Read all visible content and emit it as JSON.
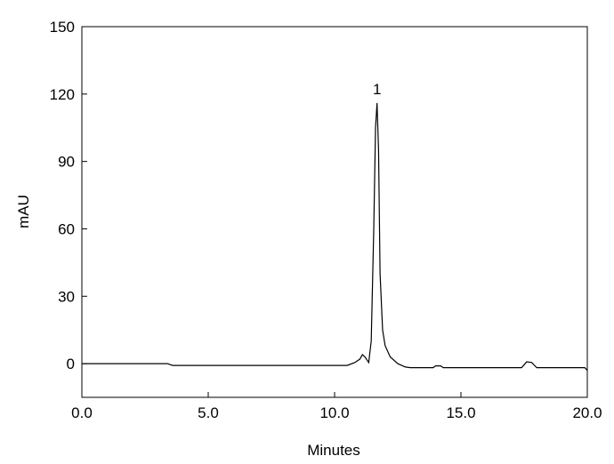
{
  "chart_data": {
    "type": "line",
    "x_label": "Minutes",
    "y_label": "mAU",
    "annotation": {
      "text": "1",
      "x": 11.68,
      "y": 116
    },
    "x": [
      0,
      3.4,
      3.5,
      3.6,
      10.5,
      10.8,
      11.0,
      11.1,
      11.2,
      11.35,
      11.45,
      11.55,
      11.62,
      11.68,
      11.74,
      11.8,
      11.9,
      12.0,
      12.2,
      12.5,
      12.8,
      13.0,
      13.9,
      14.0,
      14.2,
      14.3,
      17.4,
      17.6,
      17.8,
      18.0,
      19.9,
      20.0
    ],
    "series": [
      {
        "color": "#000000",
        "values": [
          0,
          0,
          -0.5,
          -0.8,
          -0.8,
          0.5,
          2,
          4,
          3,
          0.5,
          10,
          60,
          105,
          116,
          95,
          40,
          15,
          8,
          3,
          0,
          -1.5,
          -1.8,
          -1.8,
          -1,
          -1,
          -1.8,
          -1.8,
          0.8,
          0.5,
          -1.8,
          -1.8,
          -3
        ]
      }
    ],
    "xlim": [
      0,
      20
    ],
    "ylim": [
      -15,
      150
    ],
    "xticks": [
      {
        "value": 0,
        "label": "0.0"
      },
      {
        "value": 5,
        "label": "5.0"
      },
      {
        "value": 10,
        "label": "10.0"
      },
      {
        "value": 15,
        "label": "15.0"
      },
      {
        "value": 20,
        "label": "20.0"
      }
    ],
    "yticks": [
      0,
      30,
      60,
      90,
      120,
      150
    ]
  }
}
